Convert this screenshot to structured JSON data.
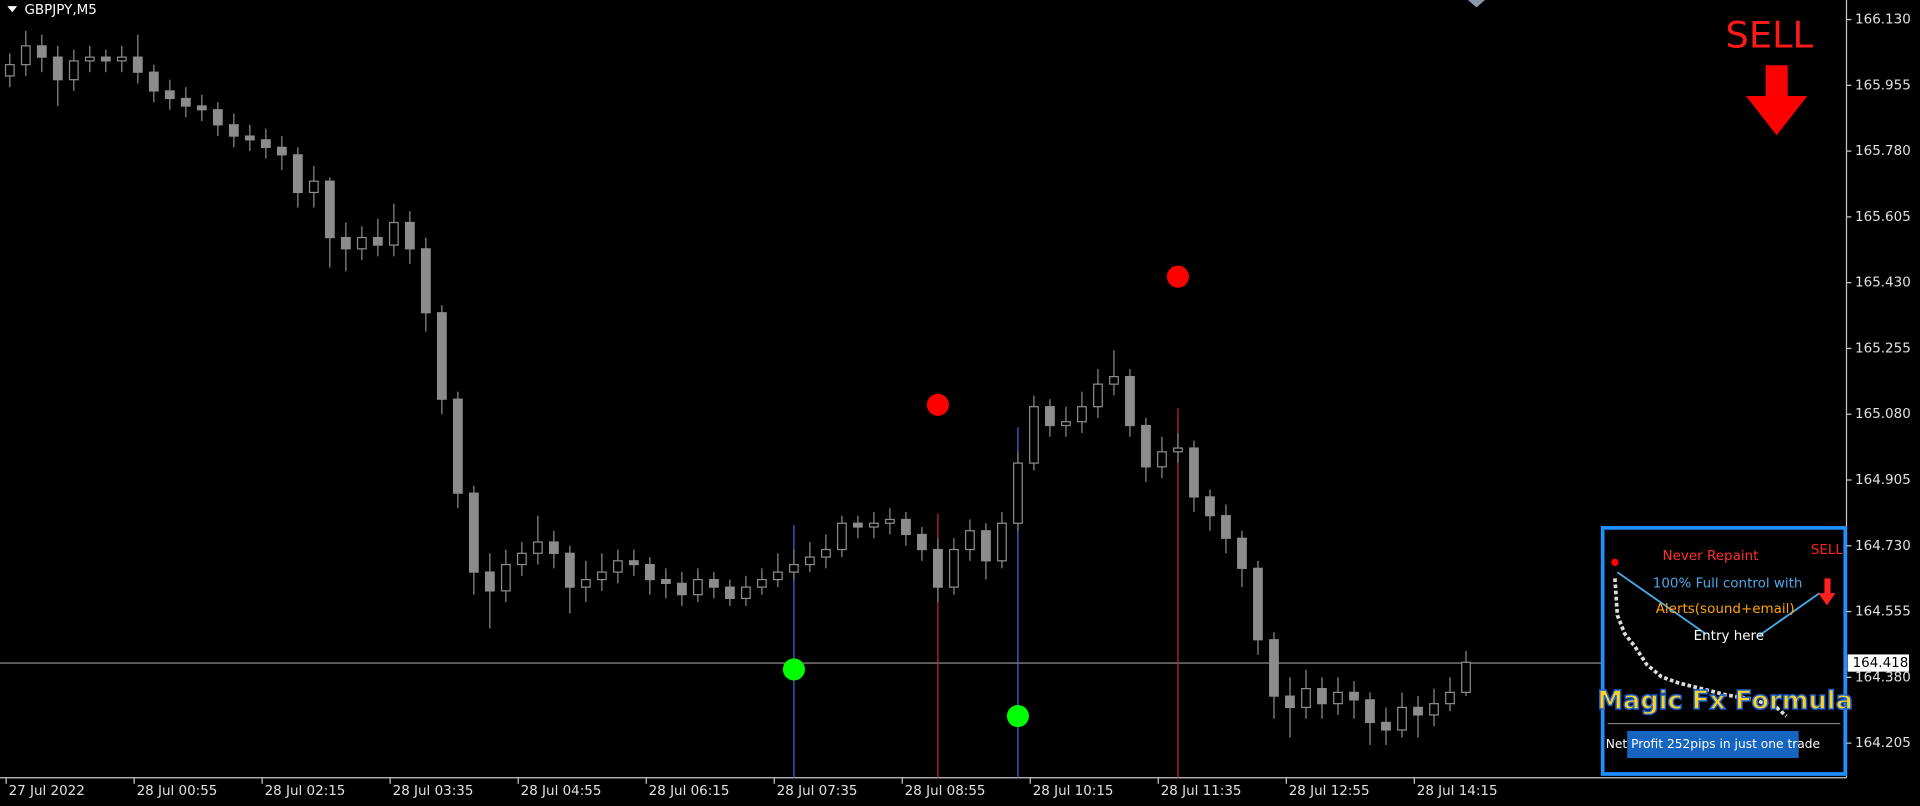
{
  "chart_data": {
    "type": "candlestick",
    "title": "GBPJPY,M5",
    "categories": [
      "27 Jul 2022",
      null,
      null,
      null,
      null,
      null,
      null,
      null,
      "28 Jul 00:55",
      null,
      null,
      null,
      null,
      null,
      null,
      null,
      "28 Jul 02:15",
      null,
      null,
      null,
      null,
      null,
      null,
      null,
      "28 Jul 03:35",
      null,
      null,
      null,
      null,
      null,
      null,
      null,
      "28 Jul 04:55",
      null,
      null,
      null,
      null,
      null,
      null,
      null,
      "28 Jul 06:15",
      null,
      null,
      null,
      null,
      null,
      null,
      null,
      "28 Jul 07:35",
      null,
      null,
      null,
      null,
      null,
      null,
      null,
      "28 Jul 08:55",
      null,
      null,
      null,
      null,
      null,
      null,
      null,
      "28 Jul 10:15",
      null,
      null,
      null,
      null,
      null,
      null,
      null,
      "28 Jul 11:35",
      null,
      null,
      null,
      null,
      null,
      null,
      null,
      "28 Jul 12:55",
      null,
      null,
      null,
      null,
      null,
      null,
      null,
      "28 Jul 14:15",
      null,
      null,
      null
    ],
    "candles": [
      [
        165.98,
        166.04,
        165.95,
        166.01
      ],
      [
        166.01,
        166.1,
        165.98,
        166.06
      ],
      [
        166.06,
        166.09,
        165.99,
        166.03
      ],
      [
        166.03,
        166.06,
        165.9,
        165.97
      ],
      [
        165.97,
        166.05,
        165.94,
        166.02
      ],
      [
        166.02,
        166.06,
        165.99,
        166.03
      ],
      [
        166.03,
        166.05,
        165.99,
        166.02
      ],
      [
        166.02,
        166.06,
        165.99,
        166.03
      ],
      [
        166.03,
        166.09,
        165.96,
        165.99
      ],
      [
        165.99,
        166.01,
        165.91,
        165.94
      ],
      [
        165.94,
        165.97,
        165.89,
        165.92
      ],
      [
        165.92,
        165.95,
        165.87,
        165.9
      ],
      [
        165.9,
        165.93,
        165.86,
        165.89
      ],
      [
        165.89,
        165.91,
        165.82,
        165.85
      ],
      [
        165.85,
        165.88,
        165.79,
        165.82
      ],
      [
        165.82,
        165.85,
        165.78,
        165.81
      ],
      [
        165.81,
        165.84,
        165.76,
        165.79
      ],
      [
        165.79,
        165.82,
        165.73,
        165.77
      ],
      [
        165.77,
        165.79,
        165.63,
        165.67
      ],
      [
        165.67,
        165.74,
        165.63,
        165.7
      ],
      [
        165.7,
        165.71,
        165.47,
        165.55
      ],
      [
        165.55,
        165.59,
        165.46,
        165.52
      ],
      [
        165.52,
        165.58,
        165.49,
        165.55
      ],
      [
        165.55,
        165.6,
        165.5,
        165.53
      ],
      [
        165.53,
        165.64,
        165.5,
        165.59
      ],
      [
        165.59,
        165.62,
        165.48,
        165.52
      ],
      [
        165.52,
        165.55,
        165.3,
        165.35
      ],
      [
        165.35,
        165.37,
        165.08,
        165.12
      ],
      [
        165.12,
        165.14,
        164.83,
        164.87
      ],
      [
        164.87,
        164.89,
        164.6,
        164.66
      ],
      [
        164.66,
        164.71,
        164.51,
        164.61
      ],
      [
        164.61,
        164.72,
        164.58,
        164.68
      ],
      [
        164.68,
        164.74,
        164.65,
        164.71
      ],
      [
        164.71,
        164.81,
        164.68,
        164.74
      ],
      [
        164.74,
        164.77,
        164.67,
        164.71
      ],
      [
        164.71,
        164.73,
        164.55,
        164.62
      ],
      [
        164.62,
        164.69,
        164.58,
        164.64
      ],
      [
        164.64,
        164.71,
        164.61,
        164.66
      ],
      [
        164.66,
        164.72,
        164.63,
        164.69
      ],
      [
        164.69,
        164.72,
        164.65,
        164.68
      ],
      [
        164.68,
        164.7,
        164.6,
        164.64
      ],
      [
        164.64,
        164.67,
        164.59,
        164.63
      ],
      [
        164.63,
        164.66,
        164.57,
        164.6
      ],
      [
        164.6,
        164.67,
        164.58,
        164.64
      ],
      [
        164.64,
        164.66,
        164.59,
        164.62
      ],
      [
        164.62,
        164.64,
        164.57,
        164.59
      ],
      [
        164.59,
        164.65,
        164.57,
        164.62
      ],
      [
        164.62,
        164.67,
        164.6,
        164.64
      ],
      [
        164.64,
        164.71,
        164.62,
        164.66
      ],
      [
        164.66,
        164.72,
        164.64,
        164.68
      ],
      [
        164.68,
        164.74,
        164.66,
        164.7
      ],
      [
        164.7,
        164.76,
        164.67,
        164.72
      ],
      [
        164.72,
        164.81,
        164.7,
        164.79
      ],
      [
        164.79,
        164.81,
        164.75,
        164.78
      ],
      [
        164.78,
        164.82,
        164.75,
        164.79
      ],
      [
        164.79,
        164.83,
        164.76,
        164.8
      ],
      [
        164.8,
        164.82,
        164.73,
        164.76
      ],
      [
        164.76,
        164.78,
        164.69,
        164.72
      ],
      [
        164.72,
        164.75,
        164.58,
        164.62
      ],
      [
        164.62,
        164.75,
        164.6,
        164.72
      ],
      [
        164.72,
        164.8,
        164.69,
        164.77
      ],
      [
        164.77,
        164.79,
        164.64,
        164.69
      ],
      [
        164.69,
        164.82,
        164.67,
        164.79
      ],
      [
        164.79,
        164.98,
        164.77,
        164.95
      ],
      [
        164.95,
        165.13,
        164.93,
        165.1
      ],
      [
        165.1,
        165.12,
        165.02,
        165.05
      ],
      [
        165.05,
        165.1,
        165.02,
        165.06
      ],
      [
        165.06,
        165.14,
        165.03,
        165.1
      ],
      [
        165.1,
        165.2,
        165.07,
        165.16
      ],
      [
        165.16,
        165.25,
        165.13,
        165.18
      ],
      [
        165.18,
        165.2,
        165.02,
        165.05
      ],
      [
        165.05,
        165.07,
        164.9,
        164.94
      ],
      [
        164.94,
        165.02,
        164.91,
        164.98
      ],
      [
        164.98,
        165.03,
        164.95,
        164.99
      ],
      [
        164.99,
        165.01,
        164.82,
        164.86
      ],
      [
        164.86,
        164.88,
        164.77,
        164.81
      ],
      [
        164.81,
        164.84,
        164.71,
        164.75
      ],
      [
        164.75,
        164.77,
        164.62,
        164.67
      ],
      [
        164.67,
        164.69,
        164.44,
        164.48
      ],
      [
        164.48,
        164.5,
        164.27,
        164.33
      ],
      [
        164.33,
        164.38,
        164.22,
        164.3
      ],
      [
        164.3,
        164.4,
        164.27,
        164.35
      ],
      [
        164.35,
        164.38,
        164.27,
        164.31
      ],
      [
        164.31,
        164.38,
        164.28,
        164.34
      ],
      [
        164.34,
        164.37,
        164.27,
        164.32
      ],
      [
        164.32,
        164.34,
        164.2,
        164.26
      ],
      [
        164.26,
        164.3,
        164.2,
        164.24
      ],
      [
        164.24,
        164.34,
        164.22,
        164.3
      ],
      [
        164.3,
        164.33,
        164.22,
        164.28
      ],
      [
        164.28,
        164.35,
        164.25,
        164.31
      ],
      [
        164.31,
        164.38,
        164.29,
        164.34
      ],
      [
        164.34,
        164.45,
        164.33,
        164.42
      ]
    ],
    "ylim": [
      164.113,
      166.182
    ],
    "yticks": [
      {
        "value": 166.13,
        "label": "166.130"
      },
      {
        "value": 165.955,
        "label": "165.955"
      },
      {
        "value": 165.78,
        "label": "165.780"
      },
      {
        "value": 165.605,
        "label": "165.605"
      },
      {
        "value": 165.43,
        "label": "165.430"
      },
      {
        "value": 165.255,
        "label": "165.255"
      },
      {
        "value": 165.08,
        "label": "165.080"
      },
      {
        "value": 164.905,
        "label": "164.905"
      },
      {
        "value": 164.73,
        "label": "164.730"
      },
      {
        "value": 164.555,
        "label": "164.555"
      },
      {
        "value": 164.38,
        "label": "164.380"
      },
      {
        "value": 164.205,
        "label": "164.205"
      }
    ],
    "current_price": {
      "value": 164.418,
      "label": "164.418"
    },
    "signals": [
      {
        "kind": "buy",
        "index": 49,
        "value": 164.401,
        "color": "#00ff00",
        "line_color": "#3a6fd8"
      },
      {
        "kind": "sell",
        "index": 58,
        "value": 165.105,
        "color": "#ff0000",
        "line_color": "#c0283a"
      },
      {
        "kind": "buy",
        "index": 63,
        "value": 164.277,
        "color": "#00ff00",
        "line_color": "#3a6fd8"
      },
      {
        "kind": "sell",
        "index": 73,
        "value": 165.446,
        "color": "#ff0000",
        "line_color": "#c0283a"
      }
    ],
    "signal_text": "SELL",
    "inset": {
      "line1": "Never Repaint",
      "line2": "100% Full control with",
      "line3": "Alerts(sound+email)",
      "entry": "Entry here",
      "sell": "SELL",
      "brand": "Magic Fx Formula",
      "profit": "Net Profit 252pips in just one trade"
    }
  }
}
